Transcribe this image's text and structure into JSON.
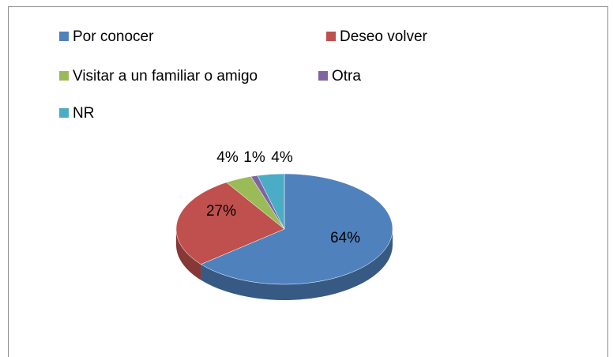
{
  "chart_data": {
    "type": "pie",
    "categories": [
      "Por conocer",
      "Deseo volver",
      "Visitar a un familiar o amigo",
      "Otra",
      "NR"
    ],
    "values": [
      64,
      27,
      4,
      1,
      4
    ],
    "value_labels": [
      "64%",
      "27%",
      "4%",
      "1%",
      "4%"
    ],
    "colors": [
      "#4f81bd",
      "#c0504d",
      "#9bbb59",
      "#8064a2",
      "#4bacc6"
    ],
    "legend": "top"
  }
}
